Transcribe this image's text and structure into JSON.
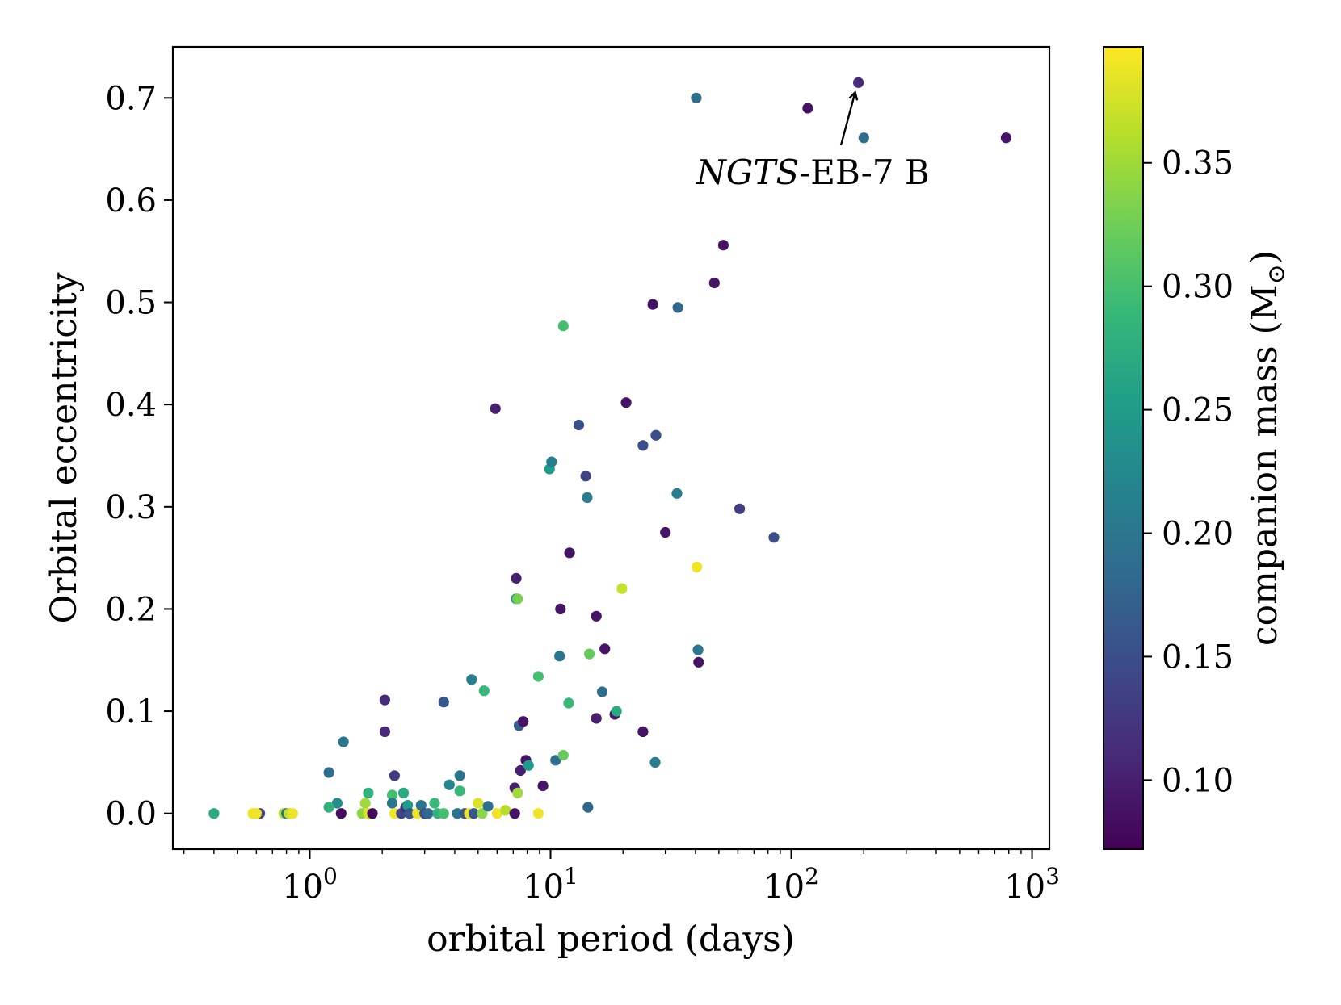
{
  "chart_data": {
    "type": "scatter",
    "title": "",
    "xlabel": "orbital period (days)",
    "ylabel": "Orbital eccentricity",
    "xscale": "log",
    "xlim": [
      0.27,
      1180
    ],
    "ylim": [
      -0.035,
      0.75
    ],
    "xticks": [
      {
        "value": 1,
        "base": "10",
        "exp": "0"
      },
      {
        "value": 10,
        "base": "10",
        "exp": "1"
      },
      {
        "value": 100,
        "base": "10",
        "exp": "2"
      },
      {
        "value": 1000,
        "base": "10",
        "exp": "3"
      }
    ],
    "yticks": [
      "0.0",
      "0.1",
      "0.2",
      "0.3",
      "0.4",
      "0.5",
      "0.6",
      "0.7"
    ],
    "grid": false,
    "legend": "none",
    "colorbar": {
      "label_text": "companion mass (M",
      "label_symbol": "⊙",
      "label_close": ")",
      "colormap": "viridis",
      "range": [
        0.072,
        0.397
      ],
      "ticks": [
        "0.10",
        "0.15",
        "0.20",
        "0.25",
        "0.30",
        "0.35"
      ],
      "stops": [
        "#440154",
        "#482878",
        "#3e4989",
        "#31688e",
        "#26828e",
        "#1f9e89",
        "#35b779",
        "#6ece58",
        "#b5de2b",
        "#fde725"
      ]
    },
    "annotations": [
      {
        "text_italic": "NGTS",
        "text_rest": "-EB-7 B",
        "target": [
          190,
          0.715
        ]
      }
    ],
    "points": [
      [
        0.4,
        0.0,
        0.27
      ],
      [
        0.62,
        0.0,
        0.14
      ],
      [
        0.6,
        0.0,
        0.39
      ],
      [
        0.58,
        0.0,
        0.39
      ],
      [
        0.78,
        0.0,
        0.36
      ],
      [
        0.8,
        0.0,
        0.2
      ],
      [
        0.82,
        0.0,
        0.37
      ],
      [
        0.85,
        0.0,
        0.39
      ],
      [
        1.2,
        0.04,
        0.19
      ],
      [
        1.3,
        0.01,
        0.23
      ],
      [
        1.2,
        0.006,
        0.28
      ],
      [
        1.35,
        0.0,
        0.08
      ],
      [
        1.38,
        0.07,
        0.2
      ],
      [
        1.65,
        0.0,
        0.34
      ],
      [
        1.7,
        0.01,
        0.35
      ],
      [
        1.75,
        0.0,
        0.38
      ],
      [
        1.75,
        0.02,
        0.28
      ],
      [
        1.82,
        0.0,
        0.08
      ],
      [
        2.05,
        0.111,
        0.11
      ],
      [
        2.05,
        0.08,
        0.11
      ],
      [
        2.2,
        0.018,
        0.3
      ],
      [
        2.2,
        0.01,
        0.2
      ],
      [
        2.25,
        0.037,
        0.13
      ],
      [
        2.25,
        0.0,
        0.39
      ],
      [
        2.4,
        0.0,
        0.14
      ],
      [
        2.45,
        0.02,
        0.27
      ],
      [
        2.5,
        0.006,
        0.11
      ],
      [
        2.55,
        0.008,
        0.25
      ],
      [
        2.6,
        0.0,
        0.16
      ],
      [
        2.8,
        0.0,
        0.39
      ],
      [
        2.9,
        0.008,
        0.2
      ],
      [
        3.0,
        0.0,
        0.15
      ],
      [
        3.1,
        0.0,
        0.18
      ],
      [
        3.3,
        0.01,
        0.29
      ],
      [
        3.4,
        0.0,
        0.28
      ],
      [
        3.6,
        0.0,
        0.3
      ],
      [
        3.6,
        0.109,
        0.16
      ],
      [
        3.8,
        0.028,
        0.22
      ],
      [
        4.1,
        0.0,
        0.2
      ],
      [
        4.2,
        0.022,
        0.29
      ],
      [
        4.2,
        0.037,
        0.2
      ],
      [
        4.4,
        0.0,
        0.16
      ],
      [
        4.6,
        0.0,
        0.39
      ],
      [
        4.7,
        0.131,
        0.21
      ],
      [
        4.8,
        0.0,
        0.16
      ],
      [
        5.0,
        0.01,
        0.38
      ],
      [
        5.2,
        0.0,
        0.34
      ],
      [
        5.3,
        0.12,
        0.29
      ],
      [
        5.5,
        0.007,
        0.19
      ],
      [
        5.9,
        0.396,
        0.1
      ],
      [
        6.0,
        0.0,
        0.39
      ],
      [
        6.5,
        0.003,
        0.36
      ],
      [
        7.1,
        0.0,
        0.09
      ],
      [
        7.1,
        0.025,
        0.1
      ],
      [
        7.2,
        0.23,
        0.1
      ],
      [
        7.2,
        0.21,
        0.24
      ],
      [
        7.3,
        0.21,
        0.33
      ],
      [
        7.3,
        0.02,
        0.35
      ],
      [
        7.4,
        0.086,
        0.17
      ],
      [
        7.5,
        0.042,
        0.1
      ],
      [
        7.7,
        0.09,
        0.09
      ],
      [
        7.9,
        0.052,
        0.09
      ],
      [
        8.1,
        0.047,
        0.25
      ],
      [
        8.9,
        0.134,
        0.3
      ],
      [
        8.9,
        0.0,
        0.39
      ],
      [
        9.3,
        0.027,
        0.09
      ],
      [
        9.9,
        0.337,
        0.25
      ],
      [
        10.1,
        0.344,
        0.21
      ],
      [
        10.5,
        0.052,
        0.19
      ],
      [
        10.9,
        0.154,
        0.2
      ],
      [
        11.0,
        0.2,
        0.09
      ],
      [
        11.3,
        0.477,
        0.3
      ],
      [
        11.3,
        0.057,
        0.32
      ],
      [
        11.9,
        0.108,
        0.29
      ],
      [
        12.0,
        0.255,
        0.09
      ],
      [
        13.1,
        0.38,
        0.15
      ],
      [
        14.0,
        0.33,
        0.14
      ],
      [
        14.2,
        0.309,
        0.21
      ],
      [
        14.3,
        0.006,
        0.18
      ],
      [
        14.5,
        0.156,
        0.32
      ],
      [
        15.5,
        0.193,
        0.09
      ],
      [
        15.5,
        0.093,
        0.1
      ],
      [
        16.4,
        0.119,
        0.19
      ],
      [
        16.8,
        0.161,
        0.09
      ],
      [
        18.5,
        0.097,
        0.09
      ],
      [
        18.8,
        0.1,
        0.27
      ],
      [
        19.8,
        0.22,
        0.37
      ],
      [
        20.6,
        0.402,
        0.09
      ],
      [
        24.2,
        0.36,
        0.15
      ],
      [
        24.2,
        0.08,
        0.09
      ],
      [
        26.6,
        0.498,
        0.09
      ],
      [
        27.2,
        0.05,
        0.21
      ],
      [
        27.4,
        0.37,
        0.15
      ],
      [
        30.0,
        0.275,
        0.09
      ],
      [
        33.5,
        0.313,
        0.21
      ],
      [
        33.8,
        0.495,
        0.18
      ],
      [
        40.3,
        0.7,
        0.19
      ],
      [
        40.5,
        0.241,
        0.39
      ],
      [
        41.0,
        0.16,
        0.2
      ],
      [
        41.2,
        0.148,
        0.09
      ],
      [
        47.9,
        0.519,
        0.09
      ],
      [
        52.2,
        0.556,
        0.09
      ],
      [
        61.0,
        0.298,
        0.13
      ],
      [
        84.7,
        0.27,
        0.15
      ],
      [
        117,
        0.69,
        0.09
      ],
      [
        190,
        0.715,
        0.11
      ],
      [
        200,
        0.661,
        0.19
      ],
      [
        780,
        0.661,
        0.09
      ]
    ]
  }
}
